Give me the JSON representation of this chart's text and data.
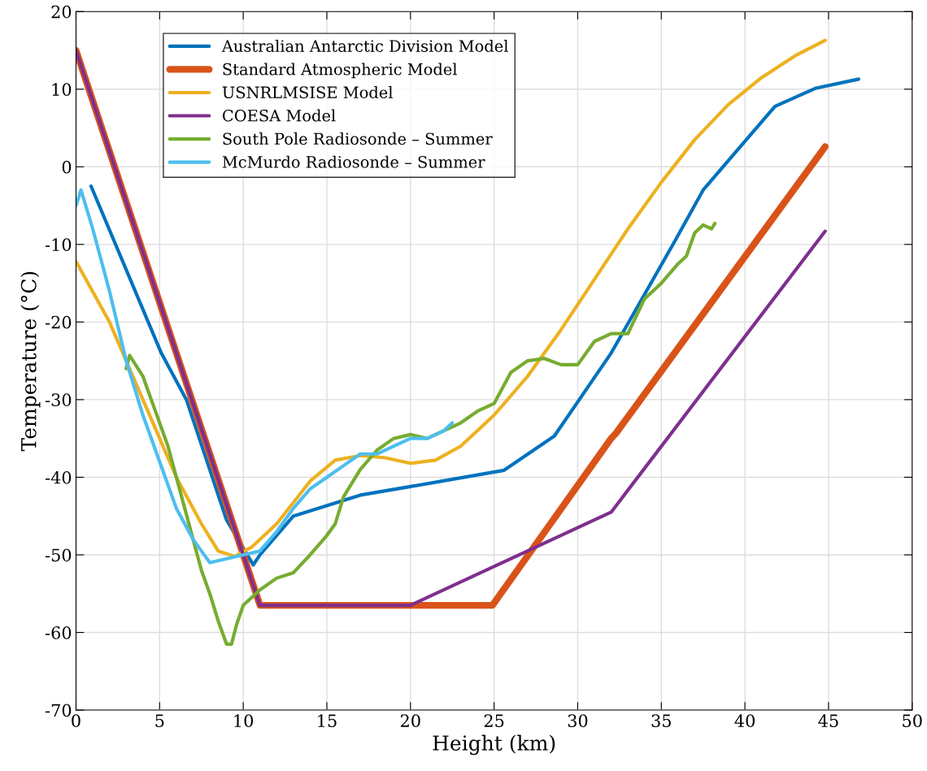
{
  "chart_data": {
    "type": "line",
    "xlabel": "Height (km)",
    "ylabel": "Temperature (°C)",
    "xlim": [
      0,
      50
    ],
    "xticks": [
      0,
      5,
      10,
      15,
      20,
      25,
      30,
      35,
      40,
      45,
      50
    ],
    "ylim": [
      -70,
      20
    ],
    "yticks": [
      -70,
      -60,
      -50,
      -40,
      -30,
      -20,
      -10,
      0,
      10,
      20
    ],
    "grid": true,
    "legend": "top left",
    "line_style": "solid",
    "marker": "none",
    "series": [
      {
        "name": "Australian Antarctic Division Model",
        "color": "#0072bd",
        "x": [
          0.9,
          5.1,
          6.6,
          9,
          10.6,
          11,
          13,
          17,
          20,
          25.6,
          28.6,
          32,
          35.7,
          37.5,
          40,
          41.8,
          44.2,
          46.8
        ],
        "values": [
          -2.5,
          -24,
          -30,
          -45.5,
          -51.3,
          -50,
          -45,
          -42.3,
          -41.2,
          -39.1,
          -34.7,
          -24,
          -10,
          -3,
          3.3,
          7.8,
          10.1,
          11.3
        ]
      },
      {
        "name": "Standard Atmospheric Model",
        "color": "#d95319",
        "x": [
          0,
          11,
          20,
          24.9,
          32,
          32.3,
          44.8
        ],
        "values": [
          15,
          -56.5,
          -56.5,
          -56.5,
          -35,
          -34.3,
          2.6
        ]
      },
      {
        "name": "USNRLMSISE Model",
        "color": "#edb120",
        "x": [
          0,
          2,
          4,
          6,
          7.5,
          8.5,
          9.5,
          10.5,
          12,
          14,
          15.5,
          17,
          18.5,
          20,
          21.5,
          23,
          25,
          27,
          29,
          31,
          33,
          35,
          37,
          39,
          41,
          43,
          44.8
        ],
        "values": [
          -12.2,
          -20,
          -30,
          -40,
          -46,
          -49.5,
          -50.2,
          -49,
          -46,
          -40.5,
          -37.8,
          -37.2,
          -37.5,
          -38.2,
          -37.8,
          -36,
          -32,
          -27,
          -21,
          -14.5,
          -8,
          -2,
          3.5,
          8,
          11.5,
          14.3,
          16.3
        ]
      },
      {
        "name": "COESA Model",
        "color": "#7e2f8e",
        "x": [
          0,
          11,
          20,
          32,
          44.8
        ],
        "values": [
          15,
          -56.5,
          -56.5,
          -44.5,
          -8.3
        ]
      },
      {
        "name": "South Pole Radiosonde – Summer",
        "color": "#77ac30",
        "x": [
          3,
          3.2,
          4,
          5,
          5.5,
          6,
          6.5,
          7,
          7.5,
          8,
          8.5,
          9,
          9.3,
          9.6,
          10,
          10.5,
          11,
          12,
          13,
          14,
          15,
          15.5,
          16,
          17,
          18,
          19,
          20,
          21,
          22,
          23,
          24,
          25,
          26,
          27,
          28,
          29,
          30,
          31,
          32,
          33,
          34,
          35,
          36,
          36.5,
          37,
          37.5,
          38,
          38.2
        ],
        "values": [
          -26,
          -24.3,
          -27,
          -33,
          -36,
          -40,
          -44,
          -48,
          -52,
          -55,
          -58.5,
          -61.5,
          -61.5,
          -59,
          -56.5,
          -55.5,
          -54.5,
          -53,
          -52.3,
          -50,
          -47.5,
          -46,
          -42.5,
          -39,
          -36.5,
          -35,
          -34.5,
          -35,
          -34,
          -33,
          -31.5,
          -30.5,
          -26.5,
          -25,
          -24.7,
          -25.5,
          -25.5,
          -22.5,
          -21.5,
          -21.5,
          -17,
          -15,
          -12.5,
          -11.5,
          -8.5,
          -7.5,
          -8,
          -7.3
        ]
      },
      {
        "name": "McMurdo Radiosonde – Summer",
        "color": "#4dbeee",
        "x": [
          0,
          0.3,
          1,
          2,
          3,
          4,
          5,
          6,
          7,
          8,
          9,
          10,
          11,
          12,
          13,
          14,
          15,
          16,
          17,
          18,
          19,
          20,
          21,
          22,
          22.5
        ],
        "values": [
          -5,
          -3,
          -8,
          -16,
          -25,
          -32,
          -38,
          -44,
          -48,
          -51,
          -50.5,
          -50,
          -49.5,
          -47,
          -44,
          -41.5,
          -40,
          -38.5,
          -37,
          -37,
          -36,
          -35,
          -35,
          -34,
          -33
        ]
      }
    ]
  }
}
